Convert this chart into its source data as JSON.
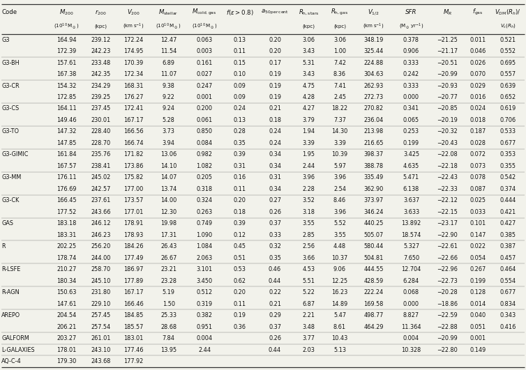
{
  "rows": [
    [
      "G3",
      "164.94",
      "239.12",
      "172.24",
      "12.47",
      "0.063",
      "0.13",
      "0.20",
      "3.06",
      "3.06",
      "348.19",
      "0.378",
      "−21.25",
      "0.011",
      "0.521"
    ],
    [
      "",
      "172.39",
      "242.23",
      "174.95",
      "11.54",
      "0.003",
      "0.11",
      "0.20",
      "3.43",
      "1.00",
      "325.44",
      "0.906",
      "−21.17",
      "0.046",
      "0.552"
    ],
    [
      "G3-BH",
      "157.61",
      "233.48",
      "170.39",
      "6.89",
      "0.161",
      "0.15",
      "0.17",
      "5.31",
      "7.42",
      "224.88",
      "0.333",
      "−20.51",
      "0.026",
      "0.695"
    ],
    [
      "",
      "167.38",
      "242.35",
      "172.34",
      "11.07",
      "0.027",
      "0.10",
      "0.19",
      "3.43",
      "8.36",
      "304.63",
      "0.242",
      "−20.99",
      "0.070",
      "0.557"
    ],
    [
      "G3-CR",
      "154.32",
      "234.29",
      "168.31",
      "9.38",
      "0.247",
      "0.09",
      "0.19",
      "4.75",
      "7.41",
      "262.93",
      "0.333",
      "−20.93",
      "0.029",
      "0.639"
    ],
    [
      "",
      "172.85",
      "239.25",
      "176.27",
      "9.22",
      "0.001",
      "0.09",
      "0.19",
      "4.28",
      "2.45",
      "272.73",
      "0.000",
      "−20.77",
      "0.016",
      "0.652"
    ],
    [
      "G3-CS",
      "164.11",
      "237.45",
      "172.41",
      "9.24",
      "0.200",
      "0.24",
      "0.21",
      "4.27",
      "18.22",
      "270.82",
      "0.341",
      "−20.85",
      "0.024",
      "0.619"
    ],
    [
      "",
      "149.46",
      "230.01",
      "167.17",
      "5.28",
      "0.061",
      "0.13",
      "0.18",
      "3.79",
      "7.37",
      "236.04",
      "0.065",
      "−20.19",
      "0.018",
      "0.706"
    ],
    [
      "G3-TO",
      "147.32",
      "228.40",
      "166.56",
      "3.73",
      "0.850",
      "0.28",
      "0.24",
      "1.94",
      "14.30",
      "213.98",
      "0.253",
      "−20.32",
      "0.187",
      "0.533"
    ],
    [
      "",
      "147.85",
      "228.70",
      "166.74",
      "3.94",
      "0.084",
      "0.35",
      "0.24",
      "3.39",
      "3.39",
      "216.65",
      "0.199",
      "−20.43",
      "0.028",
      "0.677"
    ],
    [
      "G3-GIMIC",
      "161.84",
      "235.76",
      "171.82",
      "13.06",
      "0.982",
      "0.39",
      "0.34",
      "1.95",
      "10.39",
      "398.37",
      "3.425",
      "−22.08",
      "0.072",
      "0.353"
    ],
    [
      "",
      "167.57",
      "238.41",
      "173.86",
      "14.10",
      "1.082",
      "0.31",
      "0.34",
      "2.44",
      "5.97",
      "388.78",
      "4.635",
      "−22.18",
      "0.073",
      "0.355"
    ],
    [
      "G3-MM",
      "176.11",
      "245.02",
      "175.82",
      "14.07",
      "0.205",
      "0.16",
      "0.31",
      "3.96",
      "3.96",
      "335.49",
      "5.471",
      "−22.43",
      "0.078",
      "0.542"
    ],
    [
      "",
      "176.69",
      "242.57",
      "177.00",
      "13.74",
      "0.318",
      "0.11",
      "0.34",
      "2.28",
      "2.54",
      "362.90",
      "6.138",
      "−22.33",
      "0.087",
      "0.374"
    ],
    [
      "G3-CK",
      "166.45",
      "237.61",
      "173.57",
      "14.00",
      "0.324",
      "0.20",
      "0.27",
      "3.52",
      "8.46",
      "373.97",
      "3.637",
      "−22.12",
      "0.025",
      "0.444"
    ],
    [
      "",
      "177.52",
      "243.66",
      "177.01",
      "12.30",
      "0.263",
      "0.18",
      "0.26",
      "3.18",
      "3.96",
      "346.24",
      "3.633",
      "−22.15",
      "0.033",
      "0.421"
    ],
    [
      "GAS",
      "183.18",
      "246.12",
      "178.91",
      "19.98",
      "0.749",
      "0.39",
      "0.37",
      "3.55",
      "5.52",
      "440.25",
      "13.892",
      "−23.17",
      "0.101",
      "0.427"
    ],
    [
      "",
      "183.31",
      "246.23",
      "178.93",
      "17.31",
      "1.090",
      "0.12",
      "0.33",
      "2.85",
      "3.55",
      "505.07",
      "18.574",
      "−22.90",
      "0.147",
      "0.385"
    ],
    [
      "R",
      "202.25",
      "256.20",
      "184.26",
      "26.43",
      "1.084",
      "0.45",
      "0.32",
      "2.56",
      "4.48",
      "580.44",
      "5.327",
      "−22.61",
      "0.022",
      "0.387"
    ],
    [
      "",
      "178.74",
      "244.00",
      "177.49",
      "26.67",
      "2.063",
      "0.51",
      "0.35",
      "3.66",
      "10.37",
      "504.81",
      "7.650",
      "−22.66",
      "0.054",
      "0.457"
    ],
    [
      "R-LSFE",
      "210.27",
      "258.70",
      "186.97",
      "23.21",
      "3.101",
      "0.53",
      "0.46",
      "4.53",
      "9.06",
      "444.55",
      "12.704",
      "−22.96",
      "0.267",
      "0.464"
    ],
    [
      "",
      "180.34",
      "245.10",
      "177.89",
      "23.28",
      "3.450",
      "0.62",
      "0.44",
      "5.51",
      "12.25",
      "428.59",
      "6.284",
      "−22.73",
      "0.199",
      "0.554"
    ],
    [
      "R-AGN",
      "150.63",
      "231.80",
      "167.17",
      "5.19",
      "0.512",
      "0.20",
      "0.22",
      "5.22",
      "16.23",
      "222.24",
      "0.068",
      "−20.28",
      "0.128",
      "0.677"
    ],
    [
      "",
      "147.61",
      "229.10",
      "166.46",
      "1.50",
      "0.319",
      "0.11",
      "0.21",
      "6.87",
      "14.89",
      "169.58",
      "0.000",
      "−18.86",
      "0.014",
      "0.834"
    ],
    [
      "AREPO",
      "204.54",
      "257.45",
      "184.85",
      "25.33",
      "0.382",
      "0.19",
      "0.29",
      "2.21",
      "5.47",
      "498.77",
      "8.827",
      "−22.59",
      "0.040",
      "0.343"
    ],
    [
      "",
      "206.21",
      "257.54",
      "185.57",
      "28.68",
      "0.951",
      "0.36",
      "0.37",
      "3.48",
      "8.61",
      "464.29",
      "11.364",
      "−22.88",
      "0.051",
      "0.416"
    ],
    [
      "GALFORM",
      "203.27",
      "261.01",
      "183.01",
      "7.84",
      "0.004",
      "",
      "0.26",
      "3.77",
      "10.43",
      "",
      "0.004",
      "−20.99",
      "0.001",
      ""
    ],
    [
      "L-GALAXIES",
      "178.01",
      "243.10",
      "177.46",
      "13.95",
      "2.44",
      "",
      "0.44",
      "2.03",
      "5.13",
      "",
      "10.328",
      "−22.80",
      "0.149",
      ""
    ],
    [
      "AQ-C-4",
      "179.30",
      "243.68",
      "177.92",
      "",
      "",
      "",
      "",
      "",
      "",
      "",
      "",
      "",
      "",
      ""
    ]
  ],
  "bg_color": "#f2f2eb",
  "line_color": "#333333",
  "text_color": "#111111",
  "font_size": 5.9,
  "header_font_size": 6.2
}
